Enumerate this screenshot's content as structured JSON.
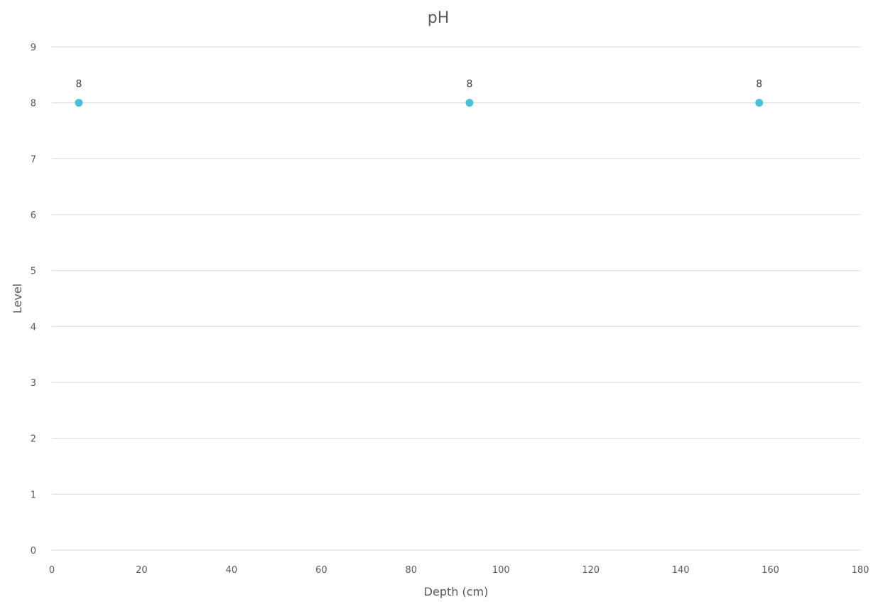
{
  "chart_data": {
    "type": "scatter",
    "title": "pH",
    "xlabel": "Depth (cm)",
    "ylabel": "Level",
    "xlim": [
      0,
      180
    ],
    "ylim": [
      0,
      9
    ],
    "xticks": [
      0,
      20,
      40,
      60,
      80,
      100,
      120,
      140,
      160,
      180
    ],
    "yticks": [
      0,
      1,
      2,
      3,
      4,
      5,
      6,
      7,
      8,
      9
    ],
    "grid": "horizontal",
    "legend": "none",
    "series": [
      {
        "points": [
          {
            "x": 6,
            "y": 8,
            "label": "8"
          },
          {
            "x": 93,
            "y": 8,
            "label": "8"
          },
          {
            "x": 157.5,
            "y": 8,
            "label": "8"
          }
        ],
        "color": "#4bbfd6"
      }
    ]
  }
}
